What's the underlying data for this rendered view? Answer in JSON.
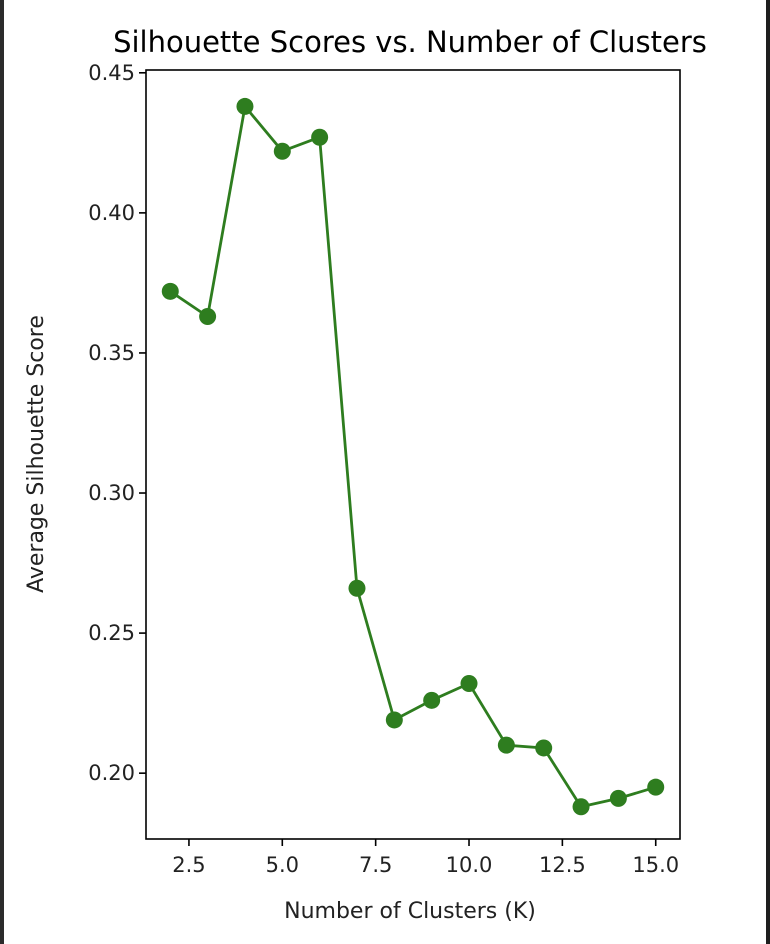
{
  "chart_data": {
    "type": "line",
    "title": "Silhouette Scores vs. Number of Clusters",
    "xlabel": "Number of Clusters (K)",
    "ylabel": "Average Silhouette Score",
    "xlim": [
      1.35,
      15.65
    ],
    "ylim": [
      0.1765,
      0.451
    ],
    "xticks": [
      2.5,
      5.0,
      7.5,
      10.0,
      12.5,
      15.0
    ],
    "xtick_labels": [
      "2.5",
      "5.0",
      "7.5",
      "10.0",
      "12.5",
      "15.0"
    ],
    "yticks": [
      0.2,
      0.25,
      0.3,
      0.35,
      0.4,
      0.45
    ],
    "ytick_labels": [
      "0.20",
      "0.25",
      "0.30",
      "0.35",
      "0.40",
      "0.45"
    ],
    "grid": false,
    "legend": false,
    "series": [
      {
        "color": "#2e7d1f",
        "marker": "circle",
        "x": [
          2,
          3,
          4,
          5,
          6,
          7,
          8,
          9,
          10,
          11,
          12,
          13,
          14,
          15
        ],
        "y": [
          0.372,
          0.363,
          0.438,
          0.422,
          0.427,
          0.266,
          0.219,
          0.226,
          0.232,
          0.21,
          0.209,
          0.188,
          0.191,
          0.195
        ]
      }
    ]
  }
}
